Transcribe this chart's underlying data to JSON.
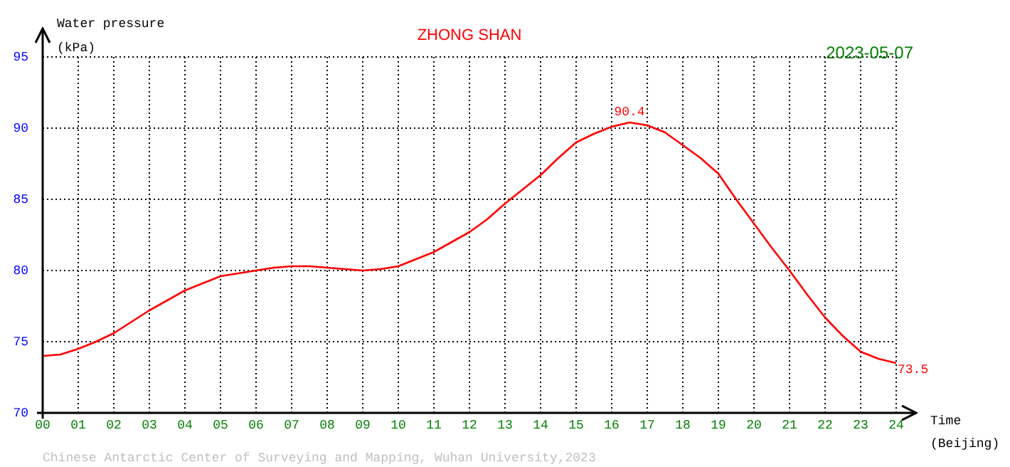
{
  "chart_data": {
    "type": "line",
    "title": "ZHONG SHAN",
    "subtitle": "2023-05-07",
    "xlabel": "Time (Beijing)",
    "ylabel": "Water pressure (kPa)",
    "x": [
      0,
      0.5,
      1,
      1.5,
      2,
      2.5,
      3,
      3.5,
      4,
      4.5,
      5,
      5.5,
      6,
      6.5,
      7,
      7.5,
      8,
      8.5,
      9,
      9.5,
      10,
      10.5,
      11,
      11.5,
      12,
      12.5,
      13,
      13.5,
      14,
      14.5,
      15,
      15.5,
      16,
      16.5,
      17,
      17.5,
      18,
      18.5,
      19,
      19.5,
      20,
      20.5,
      21,
      21.5,
      22,
      22.5,
      23,
      23.5,
      24
    ],
    "series": [
      {
        "color": "#ff0000",
        "values": [
          74.0,
          74.1,
          74.5,
          75.0,
          75.6,
          76.4,
          77.2,
          77.9,
          78.6,
          79.1,
          79.6,
          79.8,
          80.0,
          80.2,
          80.3,
          80.3,
          80.2,
          80.1,
          80.0,
          80.1,
          80.3,
          80.8,
          81.3,
          82.0,
          82.7,
          83.6,
          84.7,
          85.7,
          86.7,
          87.9,
          89.0,
          89.6,
          90.1,
          90.4,
          90.2,
          89.7,
          88.8,
          87.9,
          86.8,
          85.0,
          83.3,
          81.6,
          80.0,
          78.3,
          76.7,
          75.4,
          74.3,
          73.8,
          73.5
        ]
      }
    ],
    "xlim": [
      0,
      24
    ],
    "ylim": [
      70,
      95
    ],
    "xticks": [
      {
        "value": 0,
        "label": "00"
      },
      {
        "value": 1,
        "label": "01"
      },
      {
        "value": 2,
        "label": "02"
      },
      {
        "value": 3,
        "label": "03"
      },
      {
        "value": 4,
        "label": "04"
      },
      {
        "value": 5,
        "label": "05"
      },
      {
        "value": 6,
        "label": "06"
      },
      {
        "value": 7,
        "label": "07"
      },
      {
        "value": 8,
        "label": "08"
      },
      {
        "value": 9,
        "label": "09"
      },
      10,
      11,
      12,
      13,
      14,
      15,
      16,
      17,
      18,
      19,
      20,
      21,
      22,
      23,
      24
    ],
    "yticks": [
      70,
      75,
      80,
      85,
      90,
      95
    ],
    "grid": true,
    "legend": false,
    "marker": "none",
    "line_style": "solid",
    "annotations": [
      {
        "text": "90.4",
        "x": 16.5,
        "y": 90.4
      },
      {
        "text": "73.5",
        "x": 24,
        "y": 73.5
      },
      "Chinese Antarctic Center of Surveying and Mapping, Wuhan University,2023"
    ]
  }
}
